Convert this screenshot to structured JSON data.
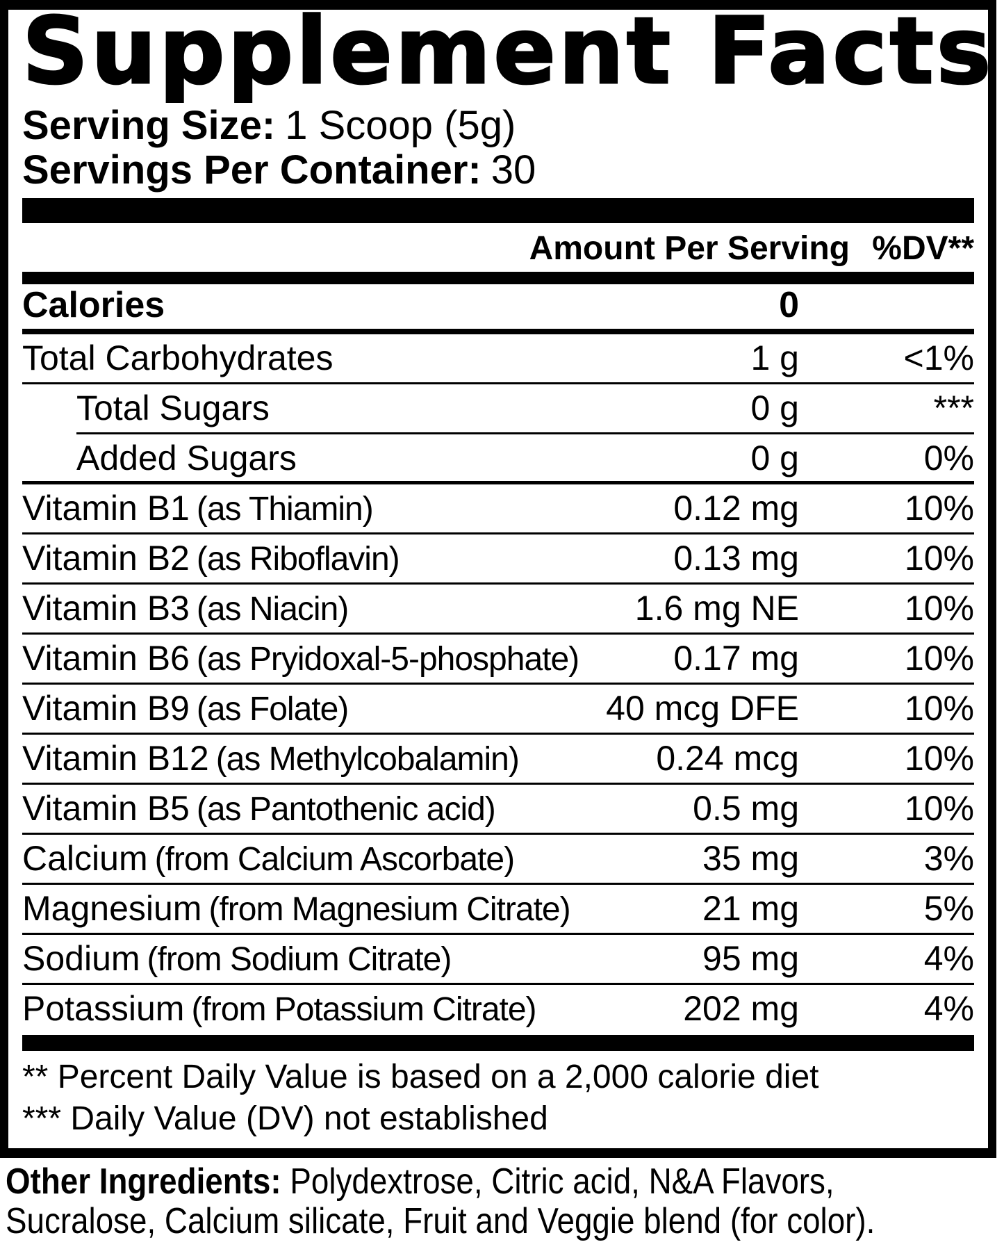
{
  "colors": {
    "ink": "#000000",
    "paper": "#ffffff"
  },
  "label": {
    "title": "Supplement Facts",
    "serving_size": {
      "label": "Serving Size:",
      "value": "1 Scoop (5g)"
    },
    "servings_per_container": {
      "label": "Servings Per Container:",
      "value": "30"
    },
    "header": {
      "amount": "Amount Per Serving",
      "dv": "%DV**"
    },
    "calories": {
      "name": "Calories",
      "amount": "0"
    },
    "rows": [
      {
        "name": "Total Carbohydrates",
        "paren": "",
        "amount": "1 g",
        "dv": "<1%"
      },
      {
        "name": "Total Sugars",
        "paren": "",
        "amount": "0 g",
        "dv": "***"
      },
      {
        "name": "Added Sugars",
        "paren": "",
        "amount": "0 g",
        "dv": "0%"
      },
      {
        "name": "Vitamin B1",
        "paren": "(as Thiamin)",
        "amount": "0.12 mg",
        "dv": "10%"
      },
      {
        "name": "Vitamin B2",
        "paren": "(as Riboflavin)",
        "amount": "0.13 mg",
        "dv": "10%"
      },
      {
        "name": "Vitamin B3",
        "paren": "(as Niacin)",
        "amount": "1.6 mg NE",
        "dv": "10%"
      },
      {
        "name": "Vitamin B6",
        "paren": "(as Pryidoxal-5-phosphate)",
        "amount": "0.17 mg",
        "dv": "10%"
      },
      {
        "name": "Vitamin B9",
        "paren": "(as Folate)",
        "amount": "40 mcg DFE",
        "dv": "10%"
      },
      {
        "name": "Vitamin B12",
        "paren": "(as Methylcobalamin)",
        "amount": "0.24 mcg",
        "dv": "10%"
      },
      {
        "name": "Vitamin B5",
        "paren": "(as Pantothenic acid)",
        "amount": "0.5 mg",
        "dv": "10%"
      },
      {
        "name": "Calcium",
        "paren": "(from Calcium Ascorbate)",
        "amount": "35 mg",
        "dv": "3%"
      },
      {
        "name": "Magnesium",
        "paren": "(from Magnesium Citrate)",
        "amount": "21 mg",
        "dv": "5%"
      },
      {
        "name": "Sodium",
        "paren": "(from Sodium Citrate)",
        "amount": "95 mg",
        "dv": "4%"
      },
      {
        "name": "Potassium",
        "paren": "(from Potassium Citrate)",
        "amount": "202 mg",
        "dv": "4%"
      }
    ],
    "footnotes": [
      "** Percent Daily Value is based on a 2,000 calorie diet",
      "*** Daily Value (DV) not established"
    ],
    "other_ingredients": {
      "label": "Other Ingredients:",
      "line1": " Polydextrose, Citric acid, N&A Flavors,",
      "line2": "Sucralose, Calcium silicate, Fruit and Veggie blend (for color)."
    }
  }
}
